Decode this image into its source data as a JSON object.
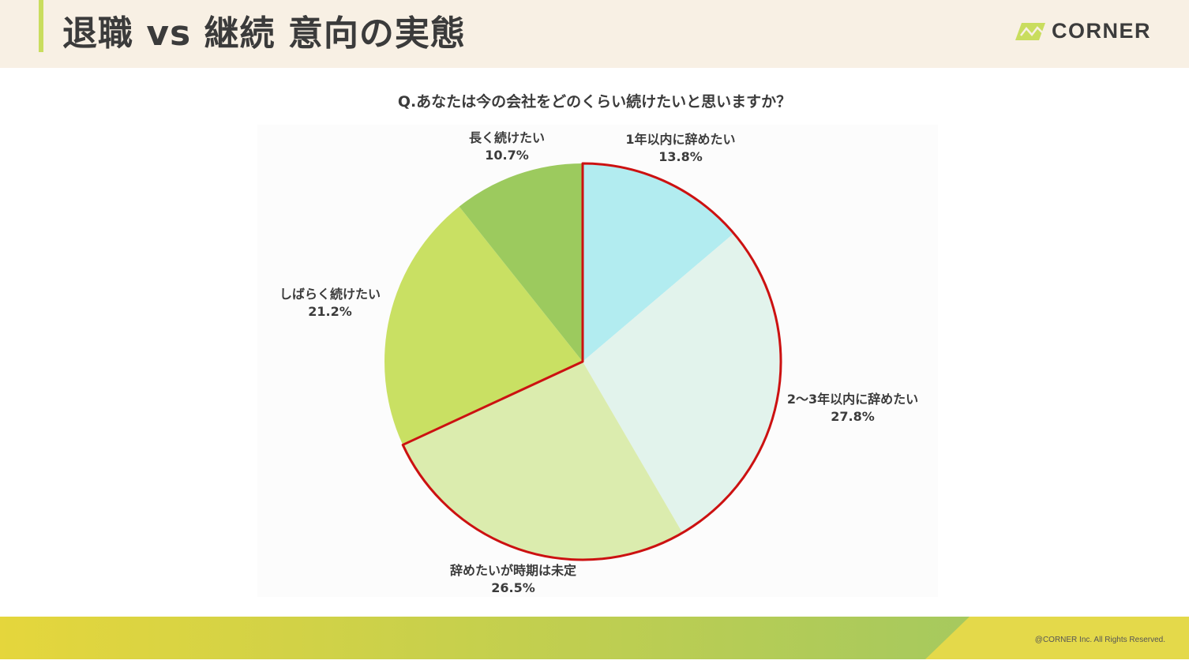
{
  "header": {
    "title": "退職 vs 継続 意向の実態",
    "logo_text": "CORNER",
    "logo_icon": "corner-logo-mark"
  },
  "question": "Q.あなたは今の会社をどのくらい続けたいと思いますか？",
  "chart_data": {
    "type": "pie",
    "title": "Q.あなたは今の会社をどのくらい続けたいと思いますか？",
    "start": "12 o'clock, clockwise",
    "categories": [
      "1年以内に辞めたい",
      "2〜3年以内に辞めたい",
      "辞めたいが時期は未定",
      "しばらく続けたい",
      "長く続けたい"
    ],
    "values": [
      13.8,
      27.8,
      26.5,
      21.2,
      10.7
    ],
    "value_labels": [
      "13.8%",
      "27.8%",
      "26.5%",
      "21.2%",
      "10.7%"
    ],
    "colors": [
      "#b2ecf0",
      "#e2f3ec",
      "#dbecae",
      "#c9e063",
      "#9cca5e"
    ],
    "highlight": {
      "slices": [
        "1年以内に辞めたい",
        "2〜3年以内に辞めたい",
        "辞めたいが時期は未定"
      ],
      "outline_color": "#cc1111"
    },
    "legend": "none"
  },
  "footer": {
    "copyright": "@CORNER Inc. All Rights Reserved.",
    "colors": [
      "#e5d63c",
      "#a6c95e"
    ]
  },
  "colors": {
    "header_bg": "#f8f0e4",
    "header_accent": "#c9dd5e",
    "text": "#3b3b3b"
  }
}
